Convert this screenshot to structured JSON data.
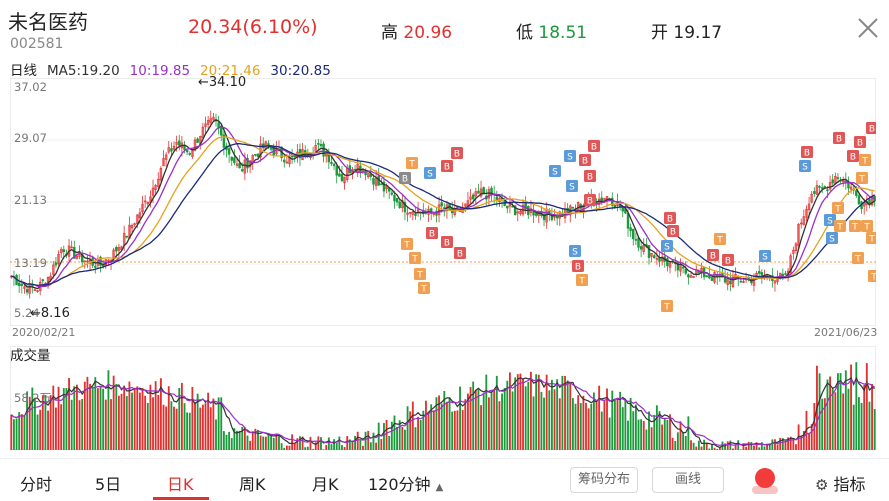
{
  "header": {
    "stock_name": "未名医药",
    "stock_code": "002581",
    "price": "20.34",
    "change_pct": "(6.10%)",
    "high_label": "高",
    "high_value": "20.96",
    "low_label": "低",
    "low_value": "18.51",
    "open_label": "开",
    "open_value": "19.17"
  },
  "ma_legend": {
    "period_label": "日线",
    "ma5": "MA5:19.20",
    "ma10": "10:19.85",
    "ma20": "20:21.46",
    "ma30": "30:20.85"
  },
  "colors": {
    "up": "#e23030",
    "down": "#1a9a3a",
    "ma5": "#333333",
    "ma10": "#9b2fc8",
    "ma20": "#e6a21c",
    "ma30": "#1c2a7a",
    "signal_b": "#e05555",
    "signal_s": "#5b9bd9",
    "signal_t": "#f0a050",
    "signal_gray": "#8a8a8a"
  },
  "price_axis": {
    "labels": [
      "37.02",
      "29.07",
      "21.13",
      "13.19",
      "5.24"
    ]
  },
  "annotations": {
    "high_marker": "←34.10",
    "low_marker": "←8.16"
  },
  "dates": {
    "start": "2020/02/21",
    "end": "2021/06/23"
  },
  "volume": {
    "title": "成交量",
    "axis_label": "58.2万"
  },
  "tabs": [
    {
      "label": "分时"
    },
    {
      "label": "5日"
    },
    {
      "label": "日K"
    },
    {
      "label": "周K"
    },
    {
      "label": "月K"
    },
    {
      "label": "120分钟"
    }
  ],
  "buttons": {
    "chips": "筹码分布",
    "draw": "画线",
    "indicator": "指标"
  },
  "signal_letters": {
    "b": "B",
    "s": "S",
    "t": "T"
  },
  "chart_data": {
    "type": "candlestick",
    "y_range": [
      5.24,
      37.02
    ],
    "close_path": [
      10.5,
      9.0,
      8.7,
      10.5,
      14.5,
      13.5,
      12.5,
      12.0,
      13.5,
      16.0,
      19.0,
      22.0,
      26.5,
      29.0,
      27.5,
      30.5,
      32.0,
      28.0,
      25.0,
      27.0,
      28.5,
      27.5,
      26.5,
      27.5,
      28.5,
      27.0,
      24.0,
      26.0,
      25.0,
      23.0,
      21.5,
      20.0,
      19.5,
      19.0,
      20.0,
      19.0,
      20.5,
      22.0,
      21.5,
      20.0,
      19.5,
      19.5,
      19.0,
      19.0,
      19.5,
      20.5,
      21.0,
      21.5,
      20.0,
      16.0,
      14.0,
      13.0,
      12.0,
      11.0,
      11.0,
      10.5,
      10.0,
      10.0,
      10.0,
      10.5,
      10.5,
      10.0,
      17.0,
      22.0,
      22.5,
      24.5,
      23.0,
      20.5,
      21.5
    ]
  }
}
